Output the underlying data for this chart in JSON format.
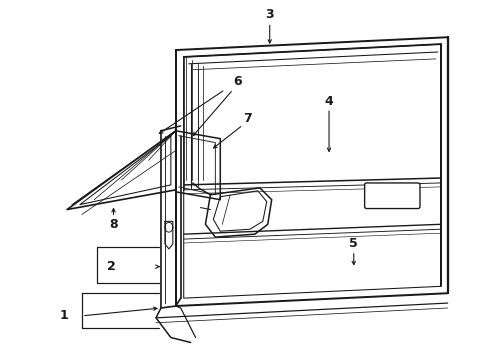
{
  "background_color": "#ffffff",
  "line_color": "#1a1a1a",
  "figsize": [
    4.9,
    3.6
  ],
  "dpi": 100,
  "label_fontsize": 9,
  "arrow_lw": 0.8,
  "line_width": 1.1
}
